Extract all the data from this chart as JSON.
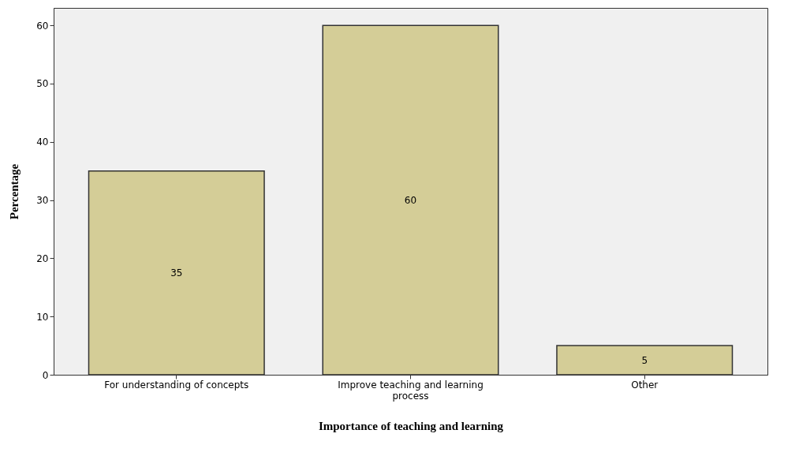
{
  "chart_data": {
    "type": "bar",
    "xlabel": "Importance of teaching and learning",
    "ylabel": "Percentage",
    "categories": [
      "For understanding of concepts",
      "Improve teaching and learning process",
      "Other"
    ],
    "values": [
      35,
      60,
      5
    ],
    "color": "#d4cd97",
    "ylim": [
      0,
      63
    ],
    "yticks": [
      0,
      10,
      20,
      30,
      40,
      50,
      60
    ],
    "grid": false,
    "data_labels": true
  }
}
